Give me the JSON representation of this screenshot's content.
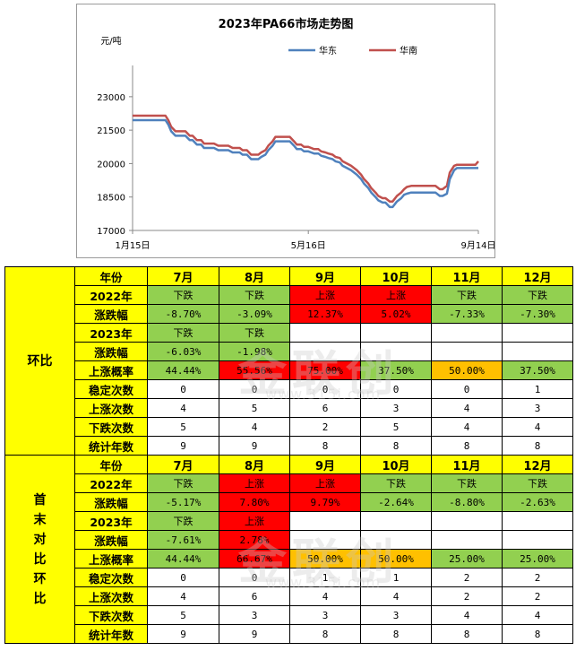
{
  "chart_data": {
    "type": "line",
    "title": "2023年PA66市场走势图",
    "ylabel": "元/吨",
    "ylim": [
      17000,
      24000
    ],
    "yticks": [
      17000,
      18500,
      20000,
      21500,
      23000
    ],
    "x": [
      0,
      3,
      5,
      8,
      10,
      12,
      15,
      18,
      20,
      23,
      25,
      27,
      30,
      33,
      35,
      37,
      40,
      42,
      45,
      48,
      50,
      52,
      55,
      57,
      60,
      62,
      64,
      67,
      70,
      72,
      75,
      77,
      80,
      83,
      85,
      88,
      90,
      93,
      95,
      98,
      100,
      103,
      105,
      108,
      110,
      113,
      115,
      118,
      120,
      123,
      125,
      127,
      130,
      132,
      135,
      137,
      140,
      142,
      145,
      147,
      150,
      153,
      155,
      157,
      160,
      162,
      165,
      167,
      170,
      172,
      175,
      177,
      180,
      182,
      185,
      188,
      190,
      192,
      195,
      197,
      200,
      202,
      205,
      208,
      210,
      212,
      215,
      217,
      220,
      222,
      225,
      227,
      230,
      232,
      235,
      237,
      240,
      242
    ],
    "xticks": [
      {
        "pos": 0,
        "label": "1月15日"
      },
      {
        "pos": 123,
        "label": "5月16日"
      },
      {
        "pos": 242,
        "label": "9月14日"
      }
    ],
    "series": [
      {
        "name": "华东",
        "color": "#4f81bd",
        "values": [
          21950,
          21950,
          21950,
          21950,
          21950,
          21950,
          21950,
          21950,
          21950,
          21950,
          21750,
          21450,
          21250,
          21250,
          21250,
          21250,
          21050,
          21050,
          20850,
          20850,
          20700,
          20700,
          20700,
          20700,
          20600,
          20600,
          20600,
          20600,
          20500,
          20500,
          20500,
          20400,
          20400,
          20200,
          20200,
          20200,
          20300,
          20400,
          20600,
          20800,
          21000,
          21000,
          21000,
          21000,
          21000,
          20800,
          20650,
          20650,
          20550,
          20550,
          20500,
          20450,
          20450,
          20350,
          20300,
          20250,
          20200,
          20100,
          20050,
          19900,
          19800,
          19700,
          19600,
          19500,
          19300,
          19100,
          18900,
          18700,
          18500,
          18350,
          18250,
          18250,
          18050,
          18050,
          18300,
          18450,
          18600,
          18650,
          18700,
          18700,
          18700,
          18700,
          18700,
          18700,
          18700,
          18700,
          18550,
          18550,
          18650,
          19300,
          19700,
          19800,
          19800,
          19800,
          19800,
          19800,
          19800,
          19800
        ]
      },
      {
        "name": "华南",
        "color": "#c0504d",
        "values": [
          22150,
          22150,
          22150,
          22150,
          22150,
          22150,
          22150,
          22150,
          22150,
          22150,
          21950,
          21650,
          21450,
          21450,
          21450,
          21450,
          21250,
          21250,
          21050,
          21050,
          20900,
          20900,
          20900,
          20900,
          20800,
          20800,
          20800,
          20800,
          20700,
          20700,
          20700,
          20600,
          20600,
          20400,
          20400,
          20400,
          20500,
          20600,
          20800,
          21000,
          21200,
          21200,
          21200,
          21200,
          21200,
          21000,
          20850,
          20850,
          20750,
          20750,
          20700,
          20650,
          20650,
          20550,
          20500,
          20450,
          20400,
          20300,
          20250,
          20100,
          20000,
          19900,
          19800,
          19700,
          19500,
          19300,
          19100,
          18900,
          18700,
          18550,
          18450,
          18450,
          18300,
          18300,
          18550,
          18700,
          18850,
          18950,
          19000,
          19000,
          19000,
          19000,
          19000,
          19000,
          19000,
          19000,
          18850,
          18850,
          19000,
          19600,
          19900,
          19950,
          19950,
          19950,
          19950,
          19950,
          19950,
          20100
        ]
      }
    ],
    "legend": "top-right"
  },
  "table": {
    "header": [
      "年份",
      "7月",
      "8月",
      "9月",
      "10月",
      "11月",
      "12月"
    ],
    "sections": [
      {
        "label": [
          "环比"
        ],
        "rows": [
          {
            "label": "年份",
            "header": true,
            "cells": [
              "7月",
              "8月",
              "9月",
              "10月",
              "11月",
              "12月"
            ]
          },
          {
            "label": "2022年",
            "cells": [
              {
                "t": "下跌",
                "c": "green",
                "txt": true
              },
              {
                "t": "下跌",
                "c": "green",
                "txt": true
              },
              {
                "t": "上涨",
                "c": "red",
                "txt": true
              },
              {
                "t": "上涨",
                "c": "red",
                "txt": true
              },
              {
                "t": "下跌",
                "c": "green",
                "txt": true
              },
              {
                "t": "下跌",
                "c": "green",
                "txt": true
              }
            ]
          },
          {
            "label": "涨跌幅",
            "cells": [
              {
                "t": "-8.70%",
                "c": "green"
              },
              {
                "t": "-3.09%",
                "c": "green"
              },
              {
                "t": "12.37%",
                "c": "red"
              },
              {
                "t": "5.02%",
                "c": "red"
              },
              {
                "t": "-7.33%",
                "c": "green"
              },
              {
                "t": "-7.30%",
                "c": "green"
              }
            ]
          },
          {
            "label": "2023年",
            "cells": [
              {
                "t": "下跌",
                "c": "green",
                "txt": true
              },
              {
                "t": "下跌",
                "c": "green",
                "txt": true
              },
              {
                "t": "",
                "c": "white"
              },
              {
                "t": "",
                "c": "white"
              },
              {
                "t": "",
                "c": "white"
              },
              {
                "t": "",
                "c": "white"
              }
            ]
          },
          {
            "label": "涨跌幅",
            "cells": [
              {
                "t": "-6.03%",
                "c": "green"
              },
              {
                "t": "-1.98%",
                "c": "green"
              },
              {
                "t": "",
                "c": "white"
              },
              {
                "t": "",
                "c": "white"
              },
              {
                "t": "",
                "c": "white"
              },
              {
                "t": "",
                "c": "white"
              }
            ]
          },
          {
            "label": "上涨概率",
            "cells": [
              {
                "t": "44.44%",
                "c": "green"
              },
              {
                "t": "55.56%",
                "c": "red"
              },
              {
                "t": "75.00%",
                "c": "red"
              },
              {
                "t": "37.50%",
                "c": "green"
              },
              {
                "t": "50.00%",
                "c": "orange"
              },
              {
                "t": "37.50%",
                "c": "green"
              }
            ]
          },
          {
            "label": "稳定次数",
            "cells": [
              {
                "t": "0",
                "c": "white"
              },
              {
                "t": "0",
                "c": "white"
              },
              {
                "t": "0",
                "c": "white"
              },
              {
                "t": "0",
                "c": "white"
              },
              {
                "t": "0",
                "c": "white"
              },
              {
                "t": "1",
                "c": "white"
              }
            ]
          },
          {
            "label": "上涨次数",
            "cells": [
              {
                "t": "4",
                "c": "white"
              },
              {
                "t": "5",
                "c": "white"
              },
              {
                "t": "6",
                "c": "white"
              },
              {
                "t": "3",
                "c": "white"
              },
              {
                "t": "4",
                "c": "white"
              },
              {
                "t": "3",
                "c": "white"
              }
            ]
          },
          {
            "label": "下跌次数",
            "cells": [
              {
                "t": "5",
                "c": "white"
              },
              {
                "t": "4",
                "c": "white"
              },
              {
                "t": "2",
                "c": "white"
              },
              {
                "t": "5",
                "c": "white"
              },
              {
                "t": "4",
                "c": "white"
              },
              {
                "t": "4",
                "c": "white"
              }
            ]
          },
          {
            "label": "统计年数",
            "cells": [
              {
                "t": "9",
                "c": "white"
              },
              {
                "t": "9",
                "c": "white"
              },
              {
                "t": "8",
                "c": "white"
              },
              {
                "t": "8",
                "c": "white"
              },
              {
                "t": "8",
                "c": "white"
              },
              {
                "t": "8",
                "c": "white"
              }
            ]
          }
        ]
      },
      {
        "label": [
          "首",
          "末",
          "对",
          "比",
          "环",
          "比"
        ],
        "rows": [
          {
            "label": "年份",
            "header": true,
            "cells": [
              "7月",
              "8月",
              "9月",
              "10月",
              "11月",
              "12月"
            ]
          },
          {
            "label": "2022年",
            "cells": [
              {
                "t": "下跌",
                "c": "green",
                "txt": true
              },
              {
                "t": "上涨",
                "c": "red",
                "txt": true
              },
              {
                "t": "上涨",
                "c": "red",
                "txt": true
              },
              {
                "t": "下跌",
                "c": "green",
                "txt": true
              },
              {
                "t": "下跌",
                "c": "green",
                "txt": true
              },
              {
                "t": "下跌",
                "c": "green",
                "txt": true
              }
            ]
          },
          {
            "label": "涨跌幅",
            "cells": [
              {
                "t": "-5.17%",
                "c": "green"
              },
              {
                "t": "7.80%",
                "c": "red"
              },
              {
                "t": "9.79%",
                "c": "red"
              },
              {
                "t": "-2.64%",
                "c": "green"
              },
              {
                "t": "-8.80%",
                "c": "green"
              },
              {
                "t": "-2.63%",
                "c": "green"
              }
            ]
          },
          {
            "label": "2023年",
            "cells": [
              {
                "t": "下跌",
                "c": "green",
                "txt": true
              },
              {
                "t": "上涨",
                "c": "red",
                "txt": true
              },
              {
                "t": "",
                "c": "white"
              },
              {
                "t": "",
                "c": "white"
              },
              {
                "t": "",
                "c": "white"
              },
              {
                "t": "",
                "c": "white"
              }
            ]
          },
          {
            "label": "涨跌幅",
            "cells": [
              {
                "t": "-7.61%",
                "c": "green"
              },
              {
                "t": "2.78%",
                "c": "red"
              },
              {
                "t": "",
                "c": "white"
              },
              {
                "t": "",
                "c": "white"
              },
              {
                "t": "",
                "c": "white"
              },
              {
                "t": "",
                "c": "white"
              }
            ]
          },
          {
            "label": "上涨概率",
            "cells": [
              {
                "t": "44.44%",
                "c": "green"
              },
              {
                "t": "66.67%",
                "c": "red"
              },
              {
                "t": "50.00%",
                "c": "orange"
              },
              {
                "t": "50.00%",
                "c": "orange"
              },
              {
                "t": "25.00%",
                "c": "green"
              },
              {
                "t": "25.00%",
                "c": "green"
              }
            ]
          },
          {
            "label": "稳定次数",
            "cells": [
              {
                "t": "0",
                "c": "white"
              },
              {
                "t": "0",
                "c": "white"
              },
              {
                "t": "1",
                "c": "white"
              },
              {
                "t": "1",
                "c": "white"
              },
              {
                "t": "2",
                "c": "white"
              },
              {
                "t": "2",
                "c": "white"
              }
            ]
          },
          {
            "label": "上涨次数",
            "cells": [
              {
                "t": "4",
                "c": "white"
              },
              {
                "t": "6",
                "c": "white"
              },
              {
                "t": "4",
                "c": "white"
              },
              {
                "t": "4",
                "c": "white"
              },
              {
                "t": "2",
                "c": "white"
              },
              {
                "t": "2",
                "c": "white"
              }
            ]
          },
          {
            "label": "下跌次数",
            "cells": [
              {
                "t": "5",
                "c": "white"
              },
              {
                "t": "3",
                "c": "white"
              },
              {
                "t": "3",
                "c": "white"
              },
              {
                "t": "3",
                "c": "white"
              },
              {
                "t": "4",
                "c": "white"
              },
              {
                "t": "4",
                "c": "white"
              }
            ]
          },
          {
            "label": "统计年数",
            "cells": [
              {
                "t": "9",
                "c": "white"
              },
              {
                "t": "9",
                "c": "white"
              },
              {
                "t": "8",
                "c": "white"
              },
              {
                "t": "8",
                "c": "white"
              },
              {
                "t": "8",
                "c": "white"
              },
              {
                "t": "8",
                "c": "white"
              }
            ]
          }
        ]
      }
    ]
  },
  "watermark": {
    "main": "金联创",
    "sub": "www.315i.com"
  }
}
